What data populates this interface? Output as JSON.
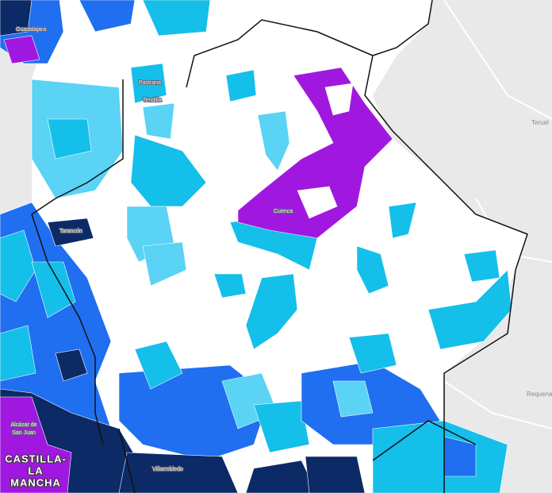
{
  "labels": {
    "guadalajara": "Guadalajara",
    "pastrana": "Pastrana",
    "tendilla": "Tendilla",
    "tarancon": "Tarancón",
    "cuenca": "Cuenca",
    "alcazar": [
      "Alcázar de",
      "San Juan"
    ],
    "region": [
      "CASTILLA-",
      "LA",
      "MANCHA"
    ],
    "villarrobledo": "Villarrobledo",
    "teruel": "Teruel",
    "requena": "Requena"
  }
}
